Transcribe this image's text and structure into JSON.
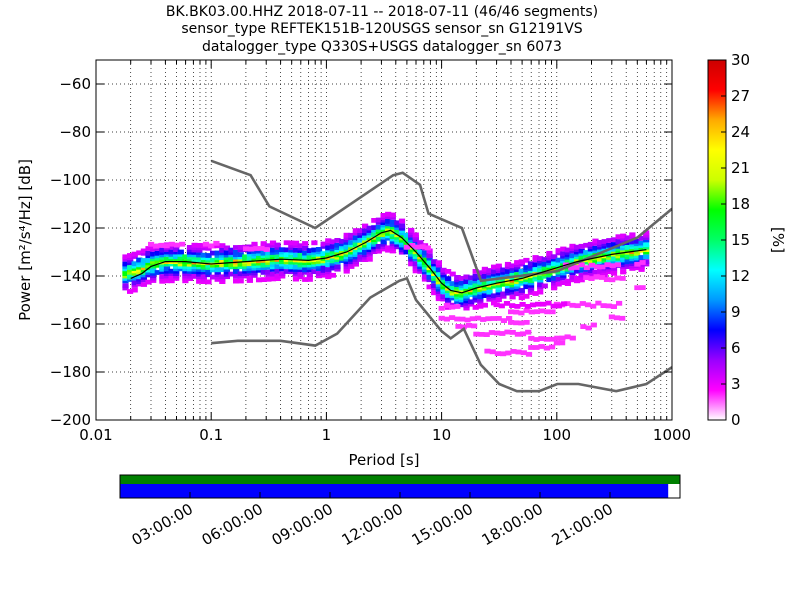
{
  "chart_data": {
    "type": "heatmap",
    "title_lines": [
      "BK.BK03.00.HHZ   2018-07-11 -- 2018-07-11  (46/46 segments)",
      "sensor_type REFTEK151B-120USGS sensor_sn G12191VS",
      "datalogger_type Q330S+USGS datalogger_sn 6073"
    ],
    "xlabel": "Period [s]",
    "ylabel": "Power [m²/s⁴/Hz] [dB]",
    "x_scale": "log",
    "xlim": [
      0.01,
      1000
    ],
    "ylim": [
      -200,
      -50
    ],
    "x_ticks": [
      {
        "value": 0.01,
        "label": "0.01"
      },
      {
        "value": 0.1,
        "label": "0.1"
      },
      {
        "value": 1,
        "label": "1"
      },
      {
        "value": 10,
        "label": "10"
      },
      {
        "value": 100,
        "label": "100"
      },
      {
        "value": 1000,
        "label": "1000"
      }
    ],
    "y_ticks": [
      {
        "value": -200,
        "label": "−200"
      },
      {
        "value": -180,
        "label": "−180"
      },
      {
        "value": -160,
        "label": "−160"
      },
      {
        "value": -140,
        "label": "−140"
      },
      {
        "value": -120,
        "label": "−120"
      },
      {
        "value": -100,
        "label": "−100"
      },
      {
        "value": -80,
        "label": "−80"
      },
      {
        "value": -60,
        "label": "−60"
      }
    ],
    "grid": "dotted",
    "colorbar": {
      "label": "[%]",
      "min": 0,
      "max": 30,
      "ticks": [
        {
          "value": 0,
          "label": "0"
        },
        {
          "value": 3,
          "label": "3"
        },
        {
          "value": 6,
          "label": "6"
        },
        {
          "value": 9,
          "label": "9"
        },
        {
          "value": 12,
          "label": "12"
        },
        {
          "value": 15,
          "label": "15"
        },
        {
          "value": 18,
          "label": "18"
        },
        {
          "value": 21,
          "label": "21"
        },
        {
          "value": 24,
          "label": "24"
        },
        {
          "value": 27,
          "label": "27"
        },
        {
          "value": 30,
          "label": "30"
        }
      ],
      "colors": [
        "#ffffff",
        "#ff00ff",
        "#9900ff",
        "#0000ff",
        "#0099ff",
        "#00ffff",
        "#00ff66",
        "#00ff00",
        "#ccff00",
        "#ffff00",
        "#ffaa00",
        "#ff0000",
        "#cc0000"
      ]
    },
    "high_noise_model": {
      "color": "#666666",
      "points": [
        [
          0.1,
          -92
        ],
        [
          0.22,
          -98
        ],
        [
          0.32,
          -111
        ],
        [
          0.8,
          -120
        ],
        [
          3.8,
          -98
        ],
        [
          4.6,
          -97
        ],
        [
          6.5,
          -102
        ],
        [
          7.7,
          -114
        ],
        [
          15,
          -120
        ],
        [
          22,
          -142
        ],
        [
          100,
          -138
        ],
        [
          500,
          -124
        ],
        [
          1000,
          -112
        ]
      ]
    },
    "low_noise_model": {
      "color": "#666666",
      "points": [
        [
          0.1,
          -168
        ],
        [
          0.17,
          -167
        ],
        [
          0.4,
          -167
        ],
        [
          0.8,
          -169
        ],
        [
          1.24,
          -164
        ],
        [
          2.4,
          -149
        ],
        [
          4.3,
          -142
        ],
        [
          5,
          -141
        ],
        [
          6,
          -150
        ],
        [
          10,
          -163
        ],
        [
          12,
          -166
        ],
        [
          15.6,
          -162
        ],
        [
          21.9,
          -177
        ],
        [
          31.6,
          -185
        ],
        [
          45,
          -188
        ],
        [
          70,
          -188
        ],
        [
          101,
          -185
        ],
        [
          154,
          -185
        ],
        [
          328,
          -188
        ],
        [
          600,
          -185
        ],
        [
          1000,
          -178
        ]
      ]
    },
    "mode_curve": {
      "color": "#000000",
      "points": [
        [
          0.02,
          -141
        ],
        [
          0.025,
          -139
        ],
        [
          0.03,
          -136
        ],
        [
          0.04,
          -134
        ],
        [
          0.06,
          -134
        ],
        [
          0.1,
          -135
        ],
        [
          0.2,
          -134
        ],
        [
          0.4,
          -133
        ],
        [
          0.7,
          -133.5
        ],
        [
          1.0,
          -132.5
        ],
        [
          1.5,
          -130
        ],
        [
          2.2,
          -126
        ],
        [
          3.0,
          -122
        ],
        [
          3.6,
          -121
        ],
        [
          4.5,
          -124
        ],
        [
          6,
          -130
        ],
        [
          8,
          -137
        ],
        [
          10,
          -143
        ],
        [
          12,
          -146
        ],
        [
          15,
          -147
        ],
        [
          20,
          -145
        ],
        [
          30,
          -143
        ],
        [
          50,
          -141
        ],
        [
          80,
          -138
        ],
        [
          150,
          -134
        ],
        [
          300,
          -131
        ],
        [
          600,
          -129
        ]
      ]
    },
    "density_bands": [
      {
        "points": [
          [
            0.018,
            -139
          ],
          [
            0.025,
            -137
          ],
          [
            0.03,
            -135
          ],
          [
            0.04,
            -134
          ],
          [
            0.06,
            -134
          ],
          [
            0.1,
            -134.5
          ],
          [
            0.2,
            -134
          ],
          [
            0.4,
            -133
          ],
          [
            0.7,
            -133.5
          ],
          [
            1.0,
            -132.5
          ],
          [
            1.5,
            -130
          ],
          [
            2.2,
            -126
          ],
          [
            3.0,
            -122
          ],
          [
            3.6,
            -121
          ],
          [
            4.5,
            -124
          ],
          [
            6,
            -130
          ],
          [
            8,
            -137
          ],
          [
            10,
            -143
          ],
          [
            12,
            -146
          ],
          [
            15,
            -147
          ],
          [
            20,
            -145
          ],
          [
            30,
            -143
          ],
          [
            50,
            -141
          ],
          [
            80,
            -138
          ],
          [
            150,
            -134
          ],
          [
            300,
            -131
          ],
          [
            600,
            -129
          ]
        ],
        "min": -8,
        "max": 7,
        "step": 1,
        "fill": 0.5,
        "peak": 26,
        "low": 3
      }
    ],
    "outlier_tracks": [
      {
        "value": 2,
        "x": [
          0.03,
          0.06
        ],
        "y": -127
      },
      {
        "value": 2,
        "x": [
          0.09,
          0.12
        ],
        "y": -127
      },
      {
        "value": 2,
        "x": [
          0.2,
          0.33
        ],
        "y": -129
      },
      {
        "value": 2,
        "x": [
          5.0,
          8.0
        ],
        "y": -128
      },
      {
        "value": 2,
        "x": [
          10,
          40
        ],
        "y": -158
      },
      {
        "value": 2,
        "x": [
          40,
          100
        ],
        "y": -155
      },
      {
        "value": 2,
        "x": [
          100,
          380
        ],
        "y": -152
      },
      {
        "value": 2,
        "x": [
          180,
          380
        ],
        "y": -141
      },
      {
        "value": 2,
        "x": [
          120,
          360
        ],
        "y": -136
      },
      {
        "value": 2,
        "x": [
          20,
          60
        ],
        "y": -164
      },
      {
        "value": 2,
        "x": [
          60,
          150
        ],
        "y": -166
      },
      {
        "value": 2,
        "x": [
          25,
          60
        ],
        "y": -172
      },
      {
        "value": 2,
        "x": [
          60,
          100
        ],
        "y": -170
      },
      {
        "value": 2,
        "x": [
          100,
          120
        ],
        "y": -168
      },
      {
        "value": 2,
        "x": [
          500,
          600
        ],
        "y": -145
      },
      {
        "value": 2,
        "x": [
          500,
          600
        ],
        "y": -135
      },
      {
        "value": 3,
        "x": [
          30,
          120
        ],
        "y": -152
      },
      {
        "value": 2,
        "x": [
          10,
          14
        ],
        "y": -153
      },
      {
        "value": 2,
        "x": [
          14,
          20
        ],
        "y": -161
      },
      {
        "value": 2,
        "x": [
          40,
          55
        ],
        "y": -160
      },
      {
        "value": 2,
        "x": [
          170,
          230
        ],
        "y": -161
      },
      {
        "value": 2,
        "x": [
          300,
          380
        ],
        "y": -157
      }
    ],
    "time_ticks": [
      {
        "label": "03:00:00",
        "fraction": 0.125
      },
      {
        "label": "06:00:00",
        "fraction": 0.25
      },
      {
        "label": "09:00:00",
        "fraction": 0.375
      },
      {
        "label": "12:00:00",
        "fraction": 0.5
      },
      {
        "label": "15:00:00",
        "fraction": 0.625
      },
      {
        "label": "18:00:00",
        "fraction": 0.75
      },
      {
        "label": "21:00:00",
        "fraction": 0.875
      }
    ],
    "coverage": {
      "data_color": "#008000",
      "psd_color": "#0000ff",
      "data_fraction": 1.0,
      "psd_fraction": 0.979
    }
  }
}
